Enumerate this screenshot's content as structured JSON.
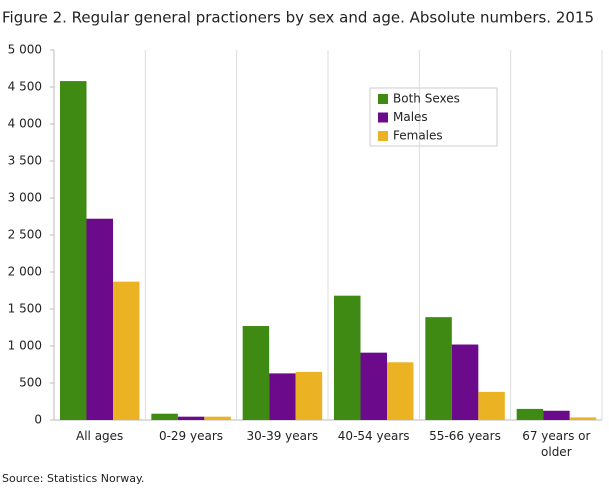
{
  "chart_data": {
    "type": "bar",
    "title": "Figure 2. Regular general practioners by sex and age. Absolute numbers. 2015",
    "source": "Source: Statistics Norway.",
    "categories": [
      "All ages",
      "0-29 years",
      "30-39 years",
      "40-54 years",
      "55-66 years",
      "67 years or older"
    ],
    "series": [
      {
        "name": "Both Sexes",
        "color": "#3f8a12",
        "values": [
          4580,
          85,
          1270,
          1680,
          1390,
          150
        ]
      },
      {
        "name": "Males",
        "color": "#6b0a8b",
        "values": [
          2720,
          45,
          630,
          910,
          1020,
          125
        ]
      },
      {
        "name": "Females",
        "color": "#ebb223",
        "values": [
          1870,
          45,
          650,
          780,
          380,
          35
        ]
      }
    ],
    "ylim": [
      0,
      5000
    ],
    "yticks": [
      0,
      500,
      {
        "value": 1000,
        "label": "1 000"
      },
      {
        "value": 1500,
        "label": "1 500"
      },
      {
        "value": 2000,
        "label": "2 000"
      },
      {
        "value": 2500,
        "label": "2 500"
      },
      {
        "value": 3000,
        "label": "3 000"
      },
      {
        "value": 3500,
        "label": "3 500"
      },
      {
        "value": 4000,
        "label": "4 000"
      },
      {
        "value": 4500,
        "label": "4 500"
      },
      {
        "value": 5000,
        "label": "5 000"
      }
    ]
  }
}
